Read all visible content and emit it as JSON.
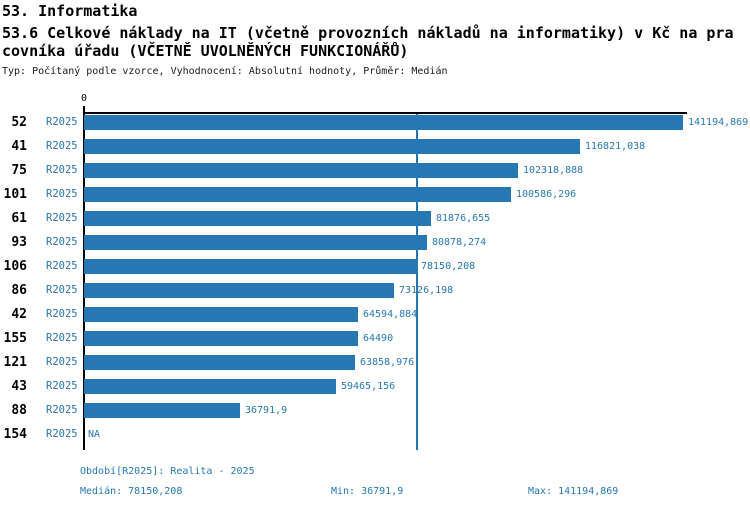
{
  "header": {
    "line1": "53. Informatika",
    "line2": "53.6 Celkové náklady na IT (včetně provozních nákladů na informatiky) v Kč na pra",
    "line3": "covníka úřadu (VČETNĚ UVOLNĚNÝCH FUNKCIONÁŘŮ)",
    "meta": "Typ: Počítaný podle vzorce, Vyhodnocení: Absolutní hodnoty, Průměr: Medián"
  },
  "chart_data": {
    "type": "bar",
    "orientation": "horizontal",
    "title": "53.6 Celkové náklady na IT (včetně provozních nákladů na informatiky) v Kč na pracovníka úřadu (VČETNĚ UVOLNĚNÝCH FUNKCIONÁŘŮ)",
    "series_name": "R2025",
    "axis": {
      "zero_label": "0",
      "xmin": 0,
      "xmax": 141194.869,
      "grid": false
    },
    "median_value": 78150.208,
    "rows": [
      {
        "id": "52",
        "period": "R2025",
        "value": 141194.869,
        "label": "141194,869"
      },
      {
        "id": "41",
        "period": "R2025",
        "value": 116821.038,
        "label": "116821,038"
      },
      {
        "id": "75",
        "period": "R2025",
        "value": 102318.888,
        "label": "102318,888"
      },
      {
        "id": "101",
        "period": "R2025",
        "value": 100586.296,
        "label": "100586,296"
      },
      {
        "id": "61",
        "period": "R2025",
        "value": 81876.655,
        "label": "81876,655"
      },
      {
        "id": "93",
        "period": "R2025",
        "value": 80878.274,
        "label": "80878,274"
      },
      {
        "id": "106",
        "period": "R2025",
        "value": 78150.208,
        "label": "78150,208"
      },
      {
        "id": "86",
        "period": "R2025",
        "value": 73126.198,
        "label": "73126,198"
      },
      {
        "id": "42",
        "period": "R2025",
        "value": 64594.884,
        "label": "64594,884"
      },
      {
        "id": "155",
        "period": "R2025",
        "value": 64490,
        "label": "64490"
      },
      {
        "id": "121",
        "period": "R2025",
        "value": 63858.976,
        "label": "63858,976"
      },
      {
        "id": "43",
        "period": "R2025",
        "value": 59465.156,
        "label": "59465,156"
      },
      {
        "id": "88",
        "period": "R2025",
        "value": 36791.9,
        "label": "36791,9"
      },
      {
        "id": "154",
        "period": "R2025",
        "value": null,
        "label": "NA"
      }
    ],
    "colors": {
      "bar": "#2578b2",
      "median_line": "#2578b2",
      "blue_text": "#2578b2",
      "axis": "#000000"
    }
  },
  "footer": {
    "period_line": "Období[R2025]: Realita - 2025",
    "median": "Medián: 78150,208",
    "min": "Min: 36791,9",
    "max": "Max: 141194,869"
  }
}
